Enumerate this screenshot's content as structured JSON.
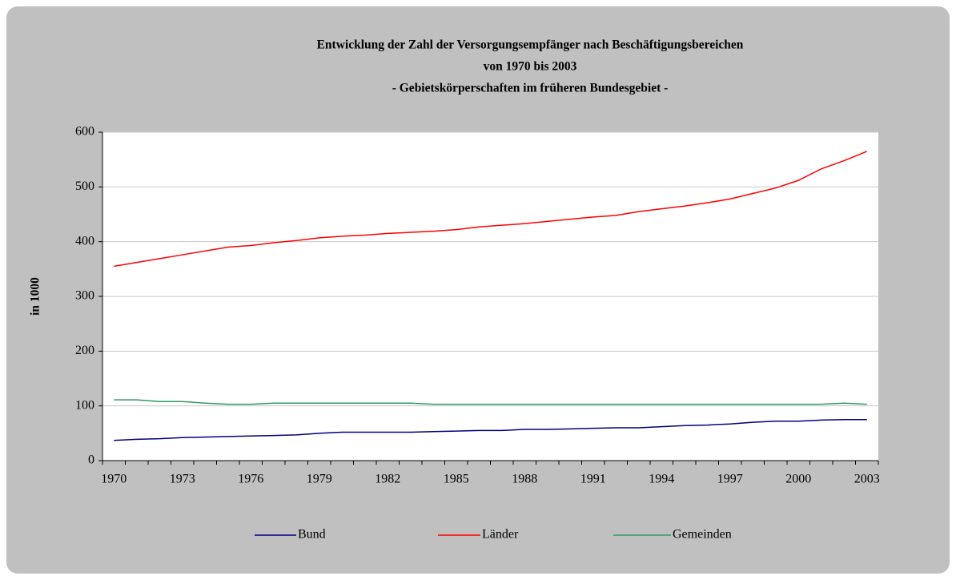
{
  "chart_data": {
    "type": "line",
    "title": [
      "Entwicklung der Zahl der Versorgungsempfänger nach Beschäftigungsbereichen",
      "von 1970 bis 2003",
      "- Gebietskörperschaften im früheren Bundesgebiet -"
    ],
    "y_label": "in 1000",
    "categories": [
      "1970",
      null,
      null,
      "1973",
      null,
      null,
      "1976",
      null,
      null,
      "1979",
      null,
      null,
      "1982",
      null,
      null,
      "1985",
      null,
      null,
      "1988",
      null,
      null,
      "1991",
      null,
      null,
      "1994",
      null,
      null,
      "1997",
      null,
      null,
      "2000",
      null,
      null,
      "2003"
    ],
    "series": [
      {
        "name": "Bund",
        "color": "#000080",
        "values": [
          37,
          39,
          40,
          42,
          43,
          44,
          45,
          46,
          47,
          50,
          52,
          52,
          52,
          52,
          53,
          54,
          55,
          55,
          57,
          57,
          58,
          59,
          60,
          60,
          62,
          64,
          65,
          67,
          70,
          72,
          72,
          74,
          75,
          75
        ]
      },
      {
        "name": "Länder",
        "color": "#ff0000",
        "values": [
          355,
          362,
          369,
          376,
          383,
          390,
          393,
          398,
          402,
          407,
          410,
          412,
          415,
          417,
          419,
          422,
          427,
          430,
          433,
          437,
          441,
          445,
          448,
          455,
          460,
          465,
          471,
          478,
          488,
          498,
          512,
          533,
          548,
          565
        ]
      },
      {
        "name": "Gemeinden",
        "color": "#339966",
        "values": [
          111,
          111,
          108,
          108,
          105,
          103,
          103,
          105,
          105,
          105,
          105,
          105,
          105,
          105,
          103,
          103,
          103,
          103,
          103,
          103,
          103,
          103,
          103,
          103,
          103,
          103,
          103,
          103,
          103,
          103,
          103,
          103,
          105,
          103
        ]
      }
    ],
    "ylim": [
      0,
      600
    ],
    "yticks": [
      0,
      100,
      200,
      300,
      400,
      500,
      600
    ],
    "grid": true,
    "legend": "bottom"
  }
}
